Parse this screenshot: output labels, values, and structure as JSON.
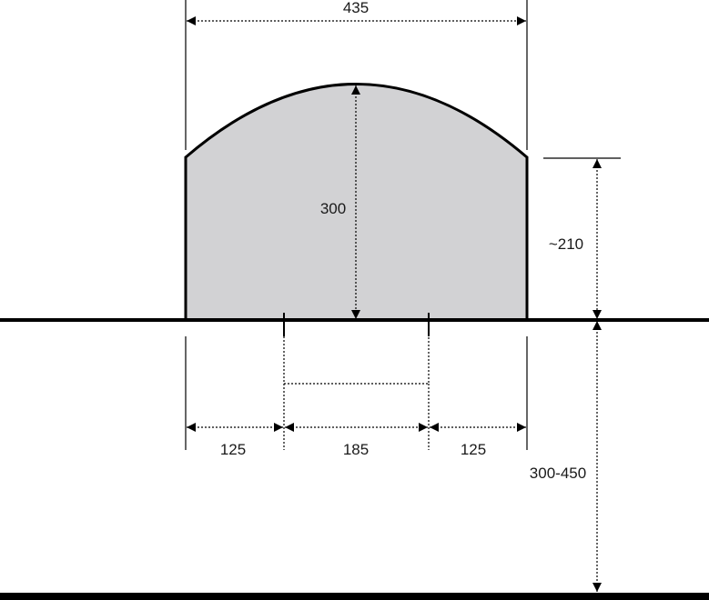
{
  "dimensions": {
    "total_width": "435",
    "dome_height": "300",
    "side_height": "~210",
    "left_offset": "125",
    "center_width": "185",
    "right_offset": "125",
    "depth_below": "300-450"
  },
  "colors": {
    "shape_fill": "#d2d2d4",
    "stroke": "#000000",
    "text": "#1a1a1a"
  }
}
